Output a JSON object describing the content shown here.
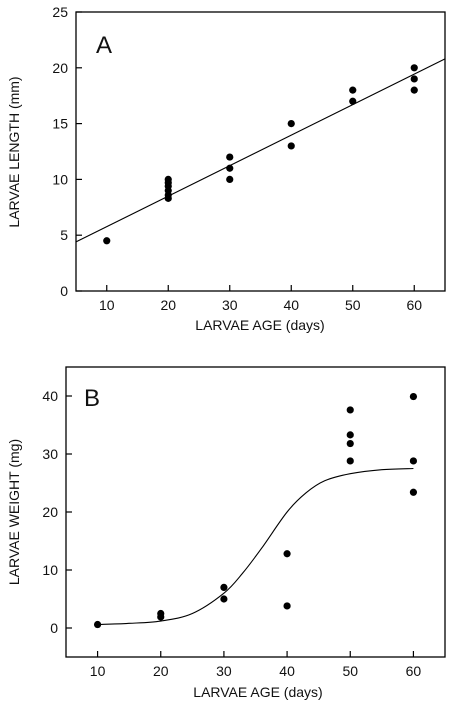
{
  "chart_data": [
    {
      "type": "scatter",
      "panel_label": "A",
      "xlabel": "LARVAE AGE (days)",
      "ylabel": "LARVAE LENGTH (mm)",
      "xlim": [
        5,
        65
      ],
      "ylim": [
        0,
        25
      ],
      "x_ticks": [
        10,
        20,
        30,
        40,
        50,
        60
      ],
      "y_ticks": [
        0,
        5,
        10,
        15,
        20,
        25
      ],
      "grid": false,
      "points": [
        {
          "x": 10,
          "y": 4.5
        },
        {
          "x": 20,
          "y": 8.3
        },
        {
          "x": 20,
          "y": 8.6
        },
        {
          "x": 20,
          "y": 9.0
        },
        {
          "x": 20,
          "y": 9.4
        },
        {
          "x": 20,
          "y": 9.7
        },
        {
          "x": 20,
          "y": 10.0
        },
        {
          "x": 30,
          "y": 10.0
        },
        {
          "x": 30,
          "y": 11.0
        },
        {
          "x": 30,
          "y": 12.0
        },
        {
          "x": 40,
          "y": 13.0
        },
        {
          "x": 40,
          "y": 15.0
        },
        {
          "x": 50,
          "y": 17.0
        },
        {
          "x": 50,
          "y": 18.0
        },
        {
          "x": 60,
          "y": 18.0
        },
        {
          "x": 60,
          "y": 19.0
        },
        {
          "x": 60,
          "y": 20.0
        }
      ],
      "fit_line": [
        {
          "x": 5,
          "y": 4.4
        },
        {
          "x": 65,
          "y": 20.8
        }
      ]
    },
    {
      "type": "scatter",
      "panel_label": "B",
      "xlabel": "LARVAE AGE (days)",
      "ylabel": "LARVAE WEIGHT (mg)",
      "xlim": [
        5,
        65
      ],
      "ylim": [
        -5,
        45
      ],
      "x_ticks": [
        10,
        20,
        30,
        40,
        50,
        60
      ],
      "y_ticks": [
        0,
        10,
        20,
        30,
        40
      ],
      "grid": false,
      "points": [
        {
          "x": 10,
          "y": 0.6
        },
        {
          "x": 20,
          "y": 1.9
        },
        {
          "x": 20,
          "y": 2.5
        },
        {
          "x": 30,
          "y": 5.0
        },
        {
          "x": 30,
          "y": 7.0
        },
        {
          "x": 40,
          "y": 3.8
        },
        {
          "x": 40,
          "y": 12.8
        },
        {
          "x": 50,
          "y": 28.8
        },
        {
          "x": 50,
          "y": 31.8
        },
        {
          "x": 50,
          "y": 33.3
        },
        {
          "x": 50,
          "y": 37.6
        },
        {
          "x": 60,
          "y": 23.4
        },
        {
          "x": 60,
          "y": 28.8
        },
        {
          "x": 60,
          "y": 39.9
        }
      ],
      "fit_curve": [
        {
          "x": 10,
          "y": 0.6
        },
        {
          "x": 15,
          "y": 0.8
        },
        {
          "x": 20,
          "y": 1.2
        },
        {
          "x": 25,
          "y": 2.5
        },
        {
          "x": 30,
          "y": 6.0
        },
        {
          "x": 33,
          "y": 9.5
        },
        {
          "x": 36,
          "y": 13.8
        },
        {
          "x": 40,
          "y": 20.0
        },
        {
          "x": 43,
          "y": 23.3
        },
        {
          "x": 46,
          "y": 25.4
        },
        {
          "x": 50,
          "y": 26.6
        },
        {
          "x": 55,
          "y": 27.3
        },
        {
          "x": 60,
          "y": 27.5
        }
      ]
    }
  ]
}
